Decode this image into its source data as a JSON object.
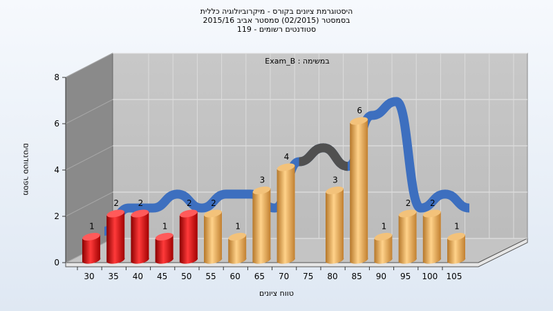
{
  "header": {
    "title_lines": [
      "היסטוגרמת ציונים בקורס - מיקרוביולוגיה כללית",
      "בסמסטר  (02/2015)  סמסטר אביב 2015/16",
      "119 - סטודנטים רשומים"
    ]
  },
  "colors": {
    "red_bar": "#e01010",
    "orange_bar": "#e8a642",
    "ribbon": "#3d6fbf",
    "ribbon_shadow": "#505050",
    "plot_back": "#c2c2c2",
    "plot_side": "#8a8a8a",
    "plot_floor": "#c4c4c4"
  },
  "chart_data": {
    "type": "bar",
    "series_label": "Exam_B : במשימה",
    "ylabel": "מספר סטודנטים",
    "xlabel": "טווח ציונים",
    "ylim": [
      0,
      8
    ],
    "yticks": [
      0,
      2,
      4,
      6,
      8
    ],
    "xticks": [
      30,
      35,
      40,
      45,
      50,
      55,
      60,
      65,
      70,
      75,
      80,
      85,
      90,
      95,
      100,
      105
    ],
    "grid": true,
    "bars": [
      {
        "x": 30,
        "value": 1,
        "color": "red"
      },
      {
        "x": 35,
        "value": 2,
        "color": "red"
      },
      {
        "x": 40,
        "value": 2,
        "color": "red"
      },
      {
        "x": 45,
        "value": 1,
        "color": "red"
      },
      {
        "x": 50,
        "value": 2,
        "color": "red"
      },
      {
        "x": 55,
        "value": 2,
        "color": "orange"
      },
      {
        "x": 60,
        "value": 1,
        "color": "orange"
      },
      {
        "x": 65,
        "value": 3,
        "color": "orange"
      },
      {
        "x": 70,
        "value": 4,
        "color": "orange"
      },
      {
        "x": 80,
        "value": 3,
        "color": "orange"
      },
      {
        "x": 85,
        "value": 6,
        "color": "orange"
      },
      {
        "x": 90,
        "value": 1,
        "color": "orange"
      },
      {
        "x": 95,
        "value": 2,
        "color": "orange"
      },
      {
        "x": 100,
        "value": 2,
        "color": "orange"
      },
      {
        "x": 105,
        "value": 1,
        "color": "orange"
      }
    ],
    "trend_line": {
      "x": [
        30,
        35,
        40,
        45,
        50,
        55,
        60,
        65,
        70,
        75,
        80,
        85,
        90,
        95,
        100,
        105
      ],
      "y": [
        1,
        2,
        2,
        2.6,
        2,
        2.6,
        2.6,
        2,
        4,
        4.6,
        3.8,
        6,
        6.6,
        2,
        2.6,
        2
      ]
    }
  }
}
